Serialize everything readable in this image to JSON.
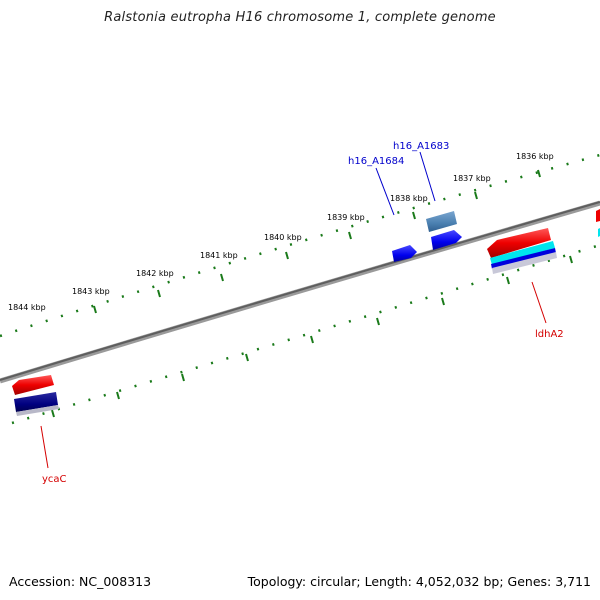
{
  "title": "Ralstonia eutropha H16 chromosome 1, complete genome",
  "footer": {
    "accession": "Accession: NC_008313",
    "stats": "Topology: circular; Length: 4,052,032 bp; Genes: 3,711"
  },
  "colors": {
    "backbone": "#7a7a7a",
    "tick": "#1a7a1a",
    "forward_label": "#0000cc",
    "reverse_label": "#d40000"
  },
  "kbp_labels": [
    "1844 kbp",
    "1843 kbp",
    "1842 kbp",
    "1841 kbp",
    "1840 kbp",
    "1839 kbp",
    "1838 kbp",
    "1837 kbp",
    "1836 kbp"
  ],
  "gene_labels": {
    "h16_A1684": "h16_A1684",
    "h16_A1683": "h16_A1683",
    "ldhA2": "ldhA2",
    "ycaC": "ycaC"
  }
}
